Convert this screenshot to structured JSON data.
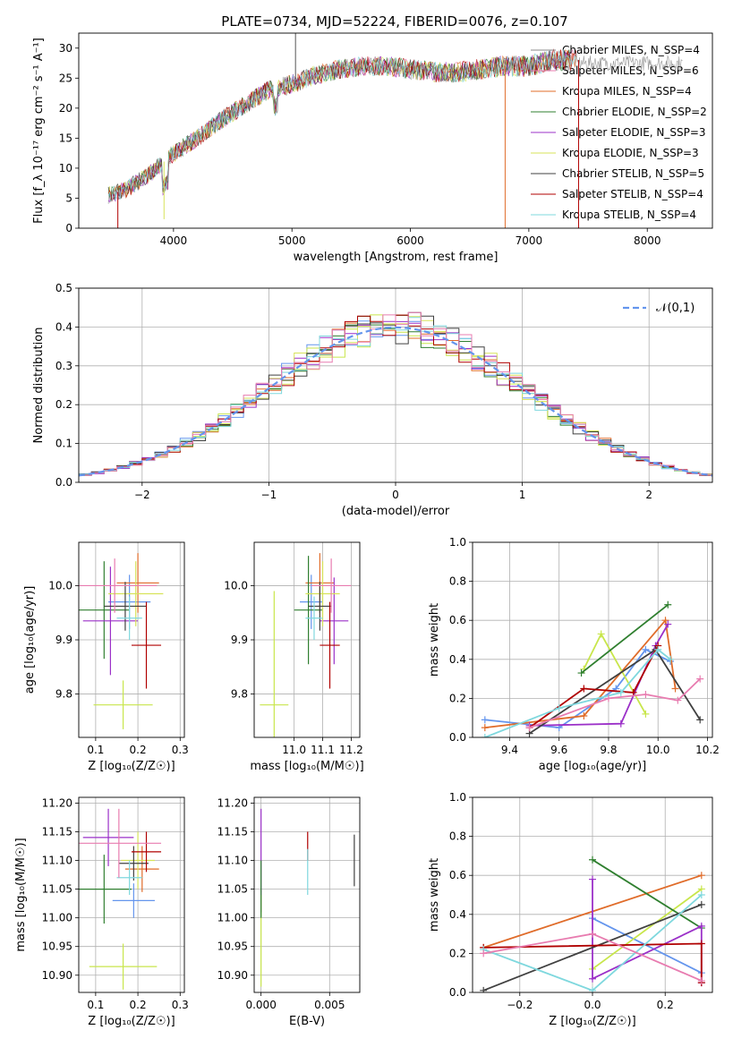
{
  "figure_title": "PLATE=0734, MJD=52224, FIBERID=0076, z=0.107",
  "colors": [
    "#6495ed",
    "#e06c2a",
    "#c8e64b",
    "#2f7f2f",
    "#9b30c8",
    "#d7e35a",
    "#404040",
    "#b00000",
    "#7fd8de",
    "#e87cb0",
    "#5a8f5a",
    "#888888"
  ],
  "chart_data": [
    {
      "id": "spectrum",
      "type": "line",
      "title": "PLATE=0734, MJD=52224, FIBERID=0076, z=0.107",
      "xlabel": "wavelength [Angstrom, rest frame]",
      "ylabel": "Flux [f_λ 10⁻¹⁷ erg cm⁻² s⁻¹ A⁻¹]",
      "xlim": [
        3200,
        8550
      ],
      "ylim": [
        0,
        32.5
      ],
      "xticks": [
        4000,
        5000,
        6000,
        7000,
        8000
      ],
      "yticks": [
        0,
        5,
        10,
        15,
        20,
        25,
        30
      ],
      "grid": false,
      "legend_position": "upper right",
      "x": [
        3450,
        3600,
        3800,
        4000,
        4200,
        4400,
        4600,
        4800,
        5000,
        5200,
        5400,
        5600,
        5800,
        6000,
        6200,
        6400,
        6600,
        6800,
        7000,
        7200,
        7400
      ],
      "continuum": [
        5.5,
        6.5,
        9,
        12.5,
        15,
        18,
        20.5,
        23,
        24,
        25.5,
        26.5,
        27,
        27,
        26.5,
        26,
        26,
        26.5,
        27,
        27,
        28,
        28
      ],
      "series": [
        {
          "name": "Chabrier MILES, N_SSP=4"
        },
        {
          "name": "Salpeter MILES, N_SSP=6"
        },
        {
          "name": "Kroupa MILES, N_SSP=4"
        },
        {
          "name": "Chabrier ELODIE, N_SSP=2"
        },
        {
          "name": "Salpeter ELODIE, N_SSP=3"
        },
        {
          "name": "Kroupa ELODIE, N_SSP=3"
        },
        {
          "name": "Chabrier STELIB, N_SSP=5"
        },
        {
          "name": "Salpeter STELIB, N_SSP=4"
        },
        {
          "name": "Kroupa STELIB, N_SSP=4"
        }
      ]
    },
    {
      "id": "residuals",
      "type": "histogram",
      "xlabel": "(data-model)/error",
      "ylabel": "Normed distribution",
      "xlim": [
        -2.5,
        2.5
      ],
      "ylim": [
        0,
        0.5
      ],
      "xticks": [
        -2,
        -1,
        0,
        1,
        2
      ],
      "yticks": [
        0.0,
        0.1,
        0.2,
        0.3,
        0.4,
        0.5
      ],
      "grid": true,
      "legend_label": "𝒩(0,1)",
      "legend_position": "upper right",
      "bin_width": 0.1,
      "reference_curve": "standard normal"
    },
    {
      "id": "age_vs_Z",
      "type": "errorbar",
      "xlabel": "Z [log₁₀(Z/Z☉)]",
      "ylabel": "age  [log₁₀(age/yr)]",
      "xlim": [
        0.06,
        0.31
      ],
      "ylim": [
        9.72,
        10.08
      ],
      "xticks": [
        0.1,
        0.2,
        0.3
      ],
      "yticks": [
        9.8,
        9.9,
        10.0
      ],
      "grid": true,
      "points": [
        {
          "x": 0.18,
          "y": 9.97,
          "xerr": 0.05,
          "yerr": 0.05,
          "c": 0
        },
        {
          "x": 0.2,
          "y": 10.005,
          "xerr": 0.05,
          "yerr": 0.055,
          "c": 1
        },
        {
          "x": 0.165,
          "y": 9.78,
          "xerr": 0.07,
          "yerr": 0.045,
          "c": 2
        },
        {
          "x": 0.12,
          "y": 9.955,
          "xerr": 0.06,
          "yerr": 0.09,
          "c": 3
        },
        {
          "x": 0.135,
          "y": 9.935,
          "xerr": 0.065,
          "yerr": 0.1,
          "c": 4
        },
        {
          "x": 0.195,
          "y": 9.985,
          "xerr": 0.065,
          "yerr": 0.06,
          "c": 5
        },
        {
          "x": 0.17,
          "y": 9.962,
          "xerr": 0.05,
          "yerr": 0.045,
          "c": 6
        },
        {
          "x": 0.22,
          "y": 9.89,
          "xerr": 0.035,
          "yerr": 0.08,
          "c": 7
        },
        {
          "x": 0.18,
          "y": 9.94,
          "xerr": 0.03,
          "yerr": 0.04,
          "c": 8
        },
        {
          "x": 0.145,
          "y": 10.0,
          "xerr": 0.1,
          "yerr": 0.05,
          "c": 9
        }
      ]
    },
    {
      "id": "age_vs_mass",
      "type": "errorbar",
      "xlabel": "mass [log₁₀(M/M☉)]",
      "ylabel": "",
      "xlim": [
        10.86,
        11.23
      ],
      "ylim": [
        9.72,
        10.08
      ],
      "xticks": [
        11.0,
        11.1,
        11.2
      ],
      "yticks": [
        9.8,
        9.9,
        10.0
      ],
      "grid": true,
      "points": [
        {
          "x": 11.06,
          "y": 9.97,
          "xerr": 0.04,
          "yerr": 0.05,
          "c": 0
        },
        {
          "x": 11.09,
          "y": 10.005,
          "xerr": 0.05,
          "yerr": 0.055,
          "c": 1
        },
        {
          "x": 10.93,
          "y": 9.78,
          "xerr": 0.05,
          "yerr": 0.21,
          "c": 2
        },
        {
          "x": 11.05,
          "y": 9.955,
          "xerr": 0.05,
          "yerr": 0.1,
          "c": 3
        },
        {
          "x": 11.14,
          "y": 9.935,
          "xerr": 0.05,
          "yerr": 0.08,
          "c": 4
        },
        {
          "x": 11.1,
          "y": 9.985,
          "xerr": 0.06,
          "yerr": 0.06,
          "c": 5
        },
        {
          "x": 11.09,
          "y": 9.962,
          "xerr": 0.04,
          "yerr": 0.045,
          "c": 6
        },
        {
          "x": 11.125,
          "y": 9.89,
          "xerr": 0.035,
          "yerr": 0.08,
          "c": 7
        },
        {
          "x": 11.07,
          "y": 9.94,
          "xerr": 0.03,
          "yerr": 0.04,
          "c": 8
        },
        {
          "x": 11.13,
          "y": 10.0,
          "xerr": 0.07,
          "yerr": 0.05,
          "c": 9
        }
      ]
    },
    {
      "id": "weights_vs_age",
      "type": "line",
      "xlabel": "age  [log₁₀(age/yr)]",
      "ylabel": "mass weight",
      "xlim": [
        9.25,
        10.22
      ],
      "ylim": [
        0,
        1.0
      ],
      "xticks": [
        9.4,
        9.6,
        9.8,
        10.0,
        10.2
      ],
      "yticks": [
        0.0,
        0.2,
        0.4,
        0.6,
        0.8,
        1.0
      ],
      "grid": true,
      "series": [
        {
          "c": 0,
          "x": [
            9.3,
            9.6,
            9.83,
            9.95,
            10.05
          ],
          "y": [
            0.09,
            0.05,
            0.25,
            0.45,
            0.39
          ]
        },
        {
          "c": 1,
          "x": [
            9.3,
            9.7,
            10.03,
            10.07
          ],
          "y": [
            0.05,
            0.11,
            0.6,
            0.25
          ]
        },
        {
          "c": 2,
          "x": [
            9.7,
            9.77,
            9.95
          ],
          "y": [
            0.35,
            0.53,
            0.12
          ]
        },
        {
          "c": 3,
          "x": [
            9.69,
            10.04
          ],
          "y": [
            0.33,
            0.68
          ]
        },
        {
          "c": 4,
          "x": [
            9.48,
            9.85,
            9.99,
            10.04
          ],
          "y": [
            0.06,
            0.07,
            0.47,
            0.58
          ]
        },
        {
          "c": 6,
          "x": [
            9.48,
            9.99,
            10.17
          ],
          "y": [
            0.02,
            0.45,
            0.09
          ]
        },
        {
          "c": 7,
          "x": [
            9.48,
            9.7,
            9.9,
            10.0
          ],
          "y": [
            0.05,
            0.25,
            0.23,
            0.47
          ]
        },
        {
          "c": 8,
          "x": [
            9.3,
            9.6,
            9.85,
            10.0,
            10.05
          ],
          "y": [
            0.0,
            0.15,
            0.23,
            0.45,
            0.4
          ]
        },
        {
          "c": 9,
          "x": [
            9.48,
            9.8,
            9.95,
            10.08,
            10.17
          ],
          "y": [
            0.05,
            0.2,
            0.22,
            0.19,
            0.3
          ]
        }
      ]
    },
    {
      "id": "mass_vs_Z",
      "type": "errorbar",
      "xlabel": "Z [log₁₀(Z/Z☉)]",
      "ylabel": "mass [log₁₀(M/M☉)]",
      "xlim": [
        0.06,
        0.31
      ],
      "ylim": [
        10.87,
        11.21
      ],
      "xticks": [
        0.1,
        0.2,
        0.3
      ],
      "yticks": [
        10.9,
        10.95,
        11.0,
        11.05,
        11.1,
        11.15,
        11.2
      ],
      "grid": true,
      "points": [
        {
          "x": 0.19,
          "y": 11.03,
          "xerr": 0.05,
          "yerr": 0.03,
          "c": 0
        },
        {
          "x": 0.21,
          "y": 11.085,
          "xerr": 0.04,
          "yerr": 0.04,
          "c": 1
        },
        {
          "x": 0.165,
          "y": 10.915,
          "xerr": 0.08,
          "yerr": 0.04,
          "c": 2
        },
        {
          "x": 0.12,
          "y": 11.05,
          "xerr": 0.065,
          "yerr": 0.06,
          "c": 3
        },
        {
          "x": 0.13,
          "y": 11.14,
          "xerr": 0.06,
          "yerr": 0.05,
          "c": 4
        },
        {
          "x": 0.2,
          "y": 11.1,
          "xerr": 0.04,
          "yerr": 0.05,
          "c": 5
        },
        {
          "x": 0.19,
          "y": 11.095,
          "xerr": 0.035,
          "yerr": 0.03,
          "c": 6
        },
        {
          "x": 0.22,
          "y": 11.115,
          "xerr": 0.035,
          "yerr": 0.035,
          "c": 7
        },
        {
          "x": 0.18,
          "y": 11.07,
          "xerr": 0.03,
          "yerr": 0.03,
          "c": 8
        },
        {
          "x": 0.155,
          "y": 11.13,
          "xerr": 0.1,
          "yerr": 0.06,
          "c": 9
        }
      ]
    },
    {
      "id": "mass_vs_EBV",
      "type": "errorbar",
      "xlabel": "E(B-V)",
      "ylabel": "",
      "xlim": [
        -0.0005,
        0.0072
      ],
      "ylim": [
        10.87,
        11.21
      ],
      "xticks": [
        0.0,
        0.005
      ],
      "xticklabels": [
        "0.000",
        "0.005"
      ],
      "yticks": [
        10.9,
        10.95,
        11.0,
        11.05,
        11.1,
        11.15,
        11.2
      ],
      "grid": true,
      "points": [
        {
          "x": 0.0,
          "y": 11.1,
          "xerr": 0,
          "yerr": 0.09,
          "c": 4
        },
        {
          "x": 0.0,
          "y": 10.96,
          "xerr": 0,
          "yerr": 0.08,
          "c": 2
        },
        {
          "x": 0.0,
          "y": 11.05,
          "xerr": 0,
          "yerr": 0.05,
          "c": 3
        },
        {
          "x": 0.0034,
          "y": 11.125,
          "xerr": 0,
          "yerr": 0.025,
          "c": 7
        },
        {
          "x": 0.0034,
          "y": 11.08,
          "xerr": 0,
          "yerr": 0.04,
          "c": 8
        },
        {
          "x": 0.0068,
          "y": 11.1,
          "xerr": 0,
          "yerr": 0.045,
          "c": 6
        }
      ]
    },
    {
      "id": "weights_vs_Z",
      "type": "line",
      "xlabel": "Z [log₁₀(Z/Z☉)]",
      "ylabel": "mass weight",
      "xlim": [
        -0.33,
        0.33
      ],
      "ylim": [
        0,
        1.0
      ],
      "xticks": [
        -0.2,
        0.0,
        0.2
      ],
      "yticks": [
        0.0,
        0.2,
        0.4,
        0.6,
        0.8,
        1.0
      ],
      "grid": true,
      "series": [
        {
          "c": 0,
          "x": [
            0.0,
            0.3
          ],
          "y": [
            0.38,
            0.1
          ]
        },
        {
          "c": 1,
          "x": [
            -0.3,
            0.3
          ],
          "y": [
            0.23,
            0.6
          ]
        },
        {
          "c": 2,
          "x": [
            0.0,
            0.3
          ],
          "y": [
            0.12,
            0.53
          ]
        },
        {
          "c": 3,
          "x": [
            0.0,
            0.3
          ],
          "y": [
            0.68,
            0.33
          ]
        },
        {
          "c": 4,
          "x": [
            0.0,
            0.0,
            0.3,
            0.3
          ],
          "y": [
            0.58,
            0.07,
            0.34,
            0.05
          ]
        },
        {
          "c": 6,
          "x": [
            -0.3,
            0.3
          ],
          "y": [
            0.01,
            0.45
          ]
        },
        {
          "c": 7,
          "x": [
            -0.3,
            0.3,
            0.3
          ],
          "y": [
            0.23,
            0.25,
            0.05
          ]
        },
        {
          "c": 8,
          "x": [
            -0.3,
            0.0,
            0.3
          ],
          "y": [
            0.22,
            0.01,
            0.5
          ]
        },
        {
          "c": 9,
          "x": [
            -0.3,
            0.0,
            0.3
          ],
          "y": [
            0.2,
            0.3,
            0.06
          ]
        }
      ]
    }
  ]
}
